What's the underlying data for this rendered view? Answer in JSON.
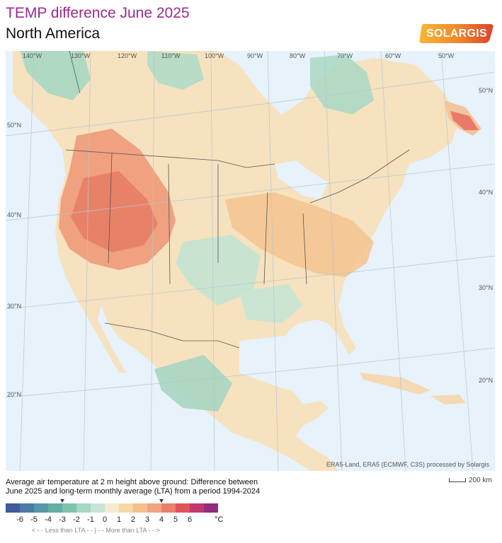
{
  "header": {
    "title": "TEMP difference June 2025",
    "subtitle": "North America",
    "logo_text": "SOLARGIS"
  },
  "map": {
    "longitude_labels": [
      "140°W",
      "130°W",
      "120°W",
      "110°W",
      "100°W",
      "90°W",
      "80°W",
      "70°W",
      "60°W",
      "50°W"
    ],
    "latitude_labels_left": [
      "50°N",
      "40°N",
      "30°N",
      "20°N"
    ],
    "latitude_labels_right": [
      "50°N",
      "40°N",
      "30°N",
      "20°N"
    ],
    "attribution": "ERA5-Land, ERA5 (ECMWF, C3S) processed by Solargis",
    "colors": {
      "ocean": "#e7f2fb",
      "border": "#555555"
    }
  },
  "caption": {
    "line1": "Average air temperature at 2 m height above ground: Difference between",
    "line2": "June 2025 and long-term monthly average (LTA) from a period 1994-2024"
  },
  "scale": {
    "label": "200 km"
  },
  "legend": {
    "colors": [
      "#3f5a9a",
      "#4a7aa8",
      "#5596a9",
      "#65aea5",
      "#81c2ac",
      "#a3d8c4",
      "#c8e5d6",
      "#f6ead0",
      "#f8d8a8",
      "#f5c08c",
      "#f1a382",
      "#ea7d6c",
      "#df5359",
      "#c0386c",
      "#932c7f"
    ],
    "tick_labels": [
      "-6",
      "-5",
      "-4",
      "-3",
      "-2",
      "-1",
      "0",
      "1",
      "2",
      "3",
      "4",
      "5",
      "6"
    ],
    "unit": "°C",
    "note": "< - - Less than LTA - -     |     - - More than LTA - - >",
    "markers": [
      "-3",
      "4"
    ]
  }
}
